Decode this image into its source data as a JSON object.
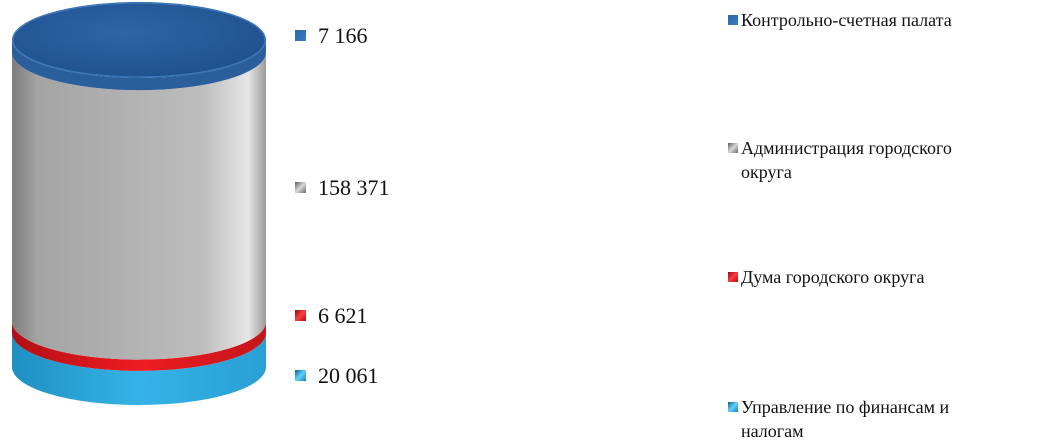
{
  "chart_data": {
    "type": "stacked-cylinder",
    "title": "",
    "series": [
      {
        "name": "Управление по финансам и налогам",
        "legend_lines": [
          "Управление по финансам и",
          "налогам"
        ],
        "value": 20061,
        "label": "20 061",
        "color": "#2aa8df"
      },
      {
        "name": "Дума городского округа",
        "legend_lines": [
          "Дума городского округа"
        ],
        "value": 6621,
        "label": "6 621",
        "color": "#e8141b"
      },
      {
        "name": "Администрация городского округа",
        "legend_lines": [
          "Администрация городского",
          "округа"
        ],
        "value": 158371,
        "label": "158 371",
        "color": "#a9a9a9"
      },
      {
        "name": "Контрольно-счетная палата",
        "legend_lines": [
          "Контрольно-счетная палата"
        ],
        "value": 7166,
        "label": "7 166",
        "color": "#2f6eb0"
      }
    ],
    "legend_position": "right",
    "grid": false
  }
}
